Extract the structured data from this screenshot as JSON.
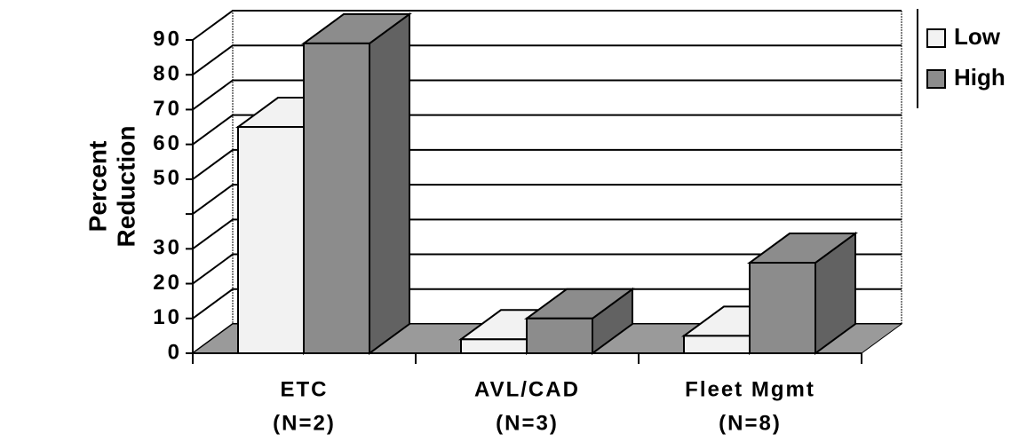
{
  "chart_data": {
    "type": "bar3d",
    "ylabel": [
      "Percent",
      "Reduction"
    ],
    "categories": [
      "ETC",
      "AVL/CAD",
      "Fleet Mgmt"
    ],
    "category_notes": [
      "(N=2)",
      "(N=3)",
      "(N=8)"
    ],
    "series": [
      {
        "name": "Low",
        "color": "#f2f2f2",
        "values": [
          65,
          4,
          5
        ]
      },
      {
        "name": "High",
        "color": "#8c8c8c",
        "values": [
          89,
          10,
          26
        ]
      }
    ],
    "ylim": [
      0,
      90
    ],
    "yticks": [
      0,
      10,
      20,
      30,
      {
        "value": 40,
        "label": null
      },
      50,
      60,
      70,
      80,
      90
    ],
    "grid": true,
    "legend": "top-right"
  }
}
